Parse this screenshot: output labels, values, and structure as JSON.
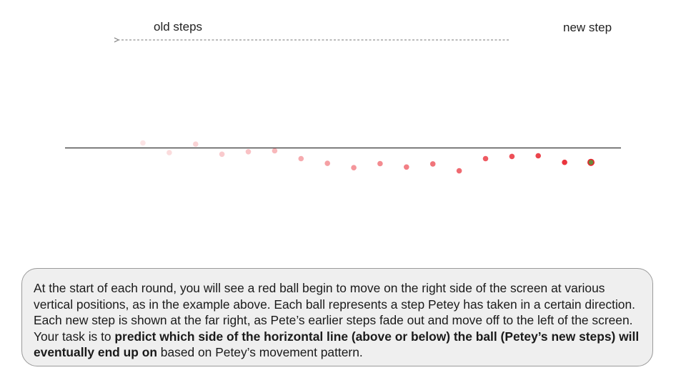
{
  "labels": {
    "old_steps": "old steps",
    "new_step": "new step"
  },
  "instructions": {
    "part1": "At the start of each round, you will see a red ball begin to move on the right side of the screen at various vertical positions, as in the example above. Each ball represents a step Petey has taken in a certain direction. Each new step is shown at the far right, as Pete’s earlier steps fade out and move off to the left of the screen. Your task is to ",
    "bold": "predict which side of the horizontal line (above or below) the ball (Petey’s new steps) will eventually end up on",
    "part2": " based on Petey’s movement pattern."
  },
  "colors": {
    "ball": "#e8232d",
    "new_ball_fill": "#6a8a3a",
    "line": "#333333",
    "arrow": "#777777",
    "panel_bg": "#efefef",
    "panel_border": "#9a9a9a"
  },
  "steps": [
    {
      "offset": 1.6,
      "opacity": 0.12
    },
    {
      "offset": -1.5,
      "opacity": 0.16
    },
    {
      "offset": 1.2,
      "opacity": 0.2
    },
    {
      "offset": -2.0,
      "opacity": 0.24
    },
    {
      "offset": -1.2,
      "opacity": 0.28
    },
    {
      "offset": -0.9,
      "opacity": 0.32
    },
    {
      "offset": -3.4,
      "opacity": 0.38
    },
    {
      "offset": -4.9,
      "opacity": 0.43
    },
    {
      "offset": -6.3,
      "opacity": 0.48
    },
    {
      "offset": -5.0,
      "opacity": 0.53
    },
    {
      "offset": -6.1,
      "opacity": 0.58
    },
    {
      "offset": -5.1,
      "opacity": 0.63
    },
    {
      "offset": -7.3,
      "opacity": 0.68
    },
    {
      "offset": -3.4,
      "opacity": 0.75
    },
    {
      "offset": -2.7,
      "opacity": 0.8
    },
    {
      "offset": -2.5,
      "opacity": 0.85
    },
    {
      "offset": -4.6,
      "opacity": 0.92
    },
    {
      "offset": -4.6,
      "opacity": 1.0,
      "is_new": true
    }
  ]
}
